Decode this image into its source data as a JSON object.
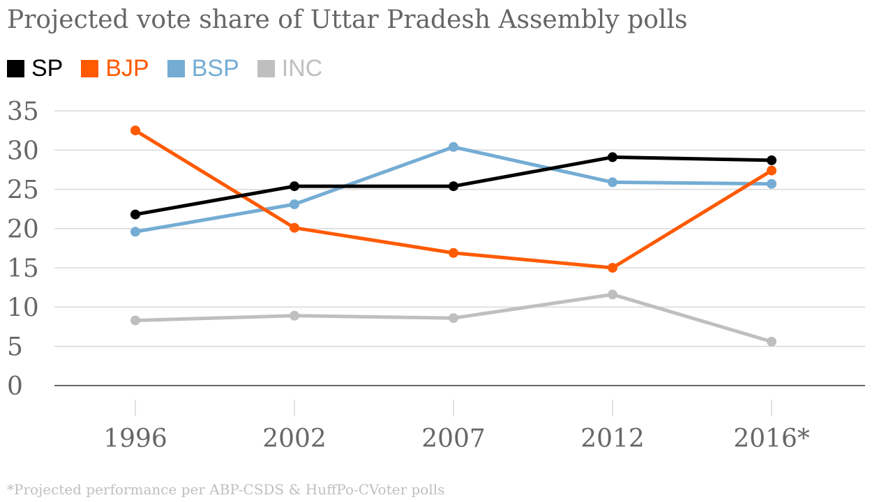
{
  "chart_data": {
    "type": "line",
    "title": "Projected vote share of Uttar Pradesh Assembly polls",
    "categories": [
      "1996",
      "2002",
      "2007",
      "2012",
      "2016*"
    ],
    "ylim": [
      0,
      35
    ],
    "yticks": [
      "0",
      "5",
      "10",
      "15",
      "20",
      "25",
      "30",
      "35"
    ],
    "grid": true,
    "legend_position": "top-left",
    "series": [
      {
        "name": "SP",
        "color": "#000000",
        "values": [
          21.8,
          25.4,
          25.4,
          29.1,
          28.7
        ]
      },
      {
        "name": "BJP",
        "color": "#ff5a00",
        "values": [
          32.5,
          20.1,
          16.9,
          15.0,
          27.4
        ]
      },
      {
        "name": "BSP",
        "color": "#74acd4",
        "values": [
          19.6,
          23.1,
          30.4,
          25.9,
          25.7
        ]
      },
      {
        "name": "INC",
        "color": "#bfbfbf",
        "values": [
          8.3,
          8.9,
          8.6,
          11.6,
          5.6
        ]
      }
    ],
    "footnote": "*Projected performance per ABP-CSDS & HuffPo-CVoter polls"
  }
}
